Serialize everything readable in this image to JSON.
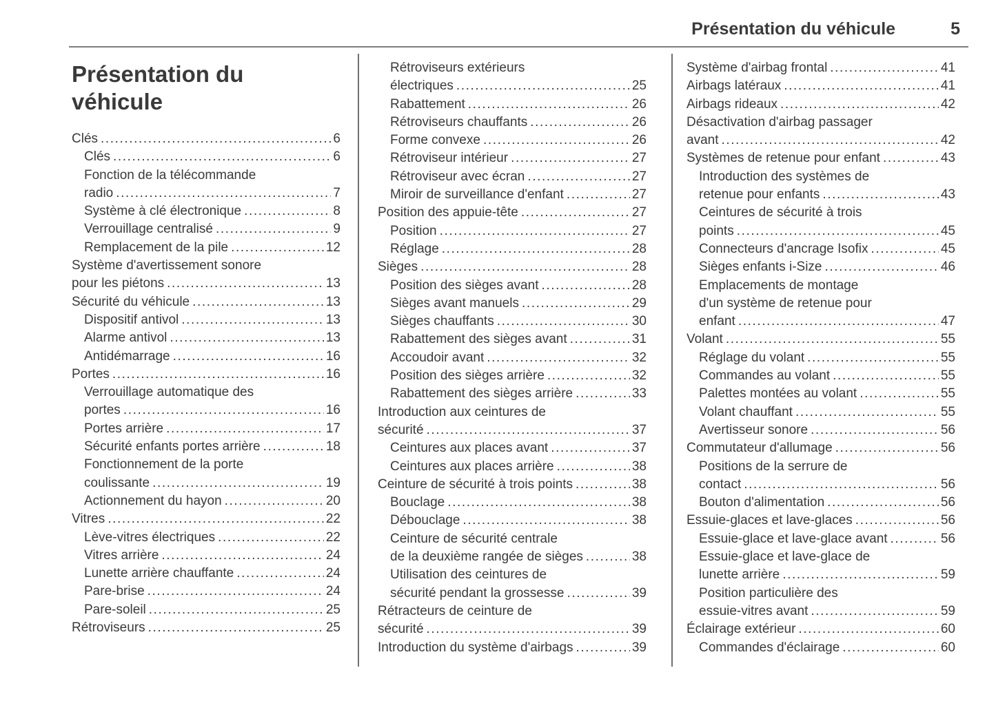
{
  "header": {
    "section_title": "Présentation du véhicule",
    "page_number": "5"
  },
  "chapter": {
    "heading": "Présentation du véhicule"
  },
  "toc": {
    "columns": [
      {
        "entries": [
          {
            "level": 0,
            "lines": [
              "Clés"
            ],
            "page": "6"
          },
          {
            "level": 1,
            "lines": [
              "Clés"
            ],
            "page": "6"
          },
          {
            "level": 1,
            "lines": [
              "Fonction de la télécommande",
              "radio"
            ],
            "page": "7"
          },
          {
            "level": 1,
            "lines": [
              "Système à clé électronique"
            ],
            "page": "8"
          },
          {
            "level": 1,
            "lines": [
              "Verrouillage centralisé"
            ],
            "page": "9"
          },
          {
            "level": 1,
            "lines": [
              "Remplacement de la pile"
            ],
            "page": "12"
          },
          {
            "level": 0,
            "lines": [
              "Système d'avertissement sonore",
              "pour les piétons"
            ],
            "page": "13"
          },
          {
            "level": 0,
            "lines": [
              "Sécurité du véhicule"
            ],
            "page": "13"
          },
          {
            "level": 1,
            "lines": [
              "Dispositif antivol"
            ],
            "page": "13"
          },
          {
            "level": 1,
            "lines": [
              "Alarme antivol"
            ],
            "page": "13"
          },
          {
            "level": 1,
            "lines": [
              "Antidémarrage"
            ],
            "page": "16"
          },
          {
            "level": 0,
            "lines": [
              "Portes"
            ],
            "page": "16"
          },
          {
            "level": 1,
            "lines": [
              "Verrouillage automatique des",
              "portes"
            ],
            "page": "16"
          },
          {
            "level": 1,
            "lines": [
              "Portes arrière"
            ],
            "page": "17"
          },
          {
            "level": 1,
            "lines": [
              "Sécurité enfants portes arrière"
            ],
            "page": "18"
          },
          {
            "level": 1,
            "lines": [
              "Fonctionnement de la porte",
              "coulissante"
            ],
            "page": "19"
          },
          {
            "level": 1,
            "lines": [
              "Actionnement du hayon"
            ],
            "page": "20"
          },
          {
            "level": 0,
            "lines": [
              "Vitres"
            ],
            "page": "22"
          },
          {
            "level": 1,
            "lines": [
              "Lève-vitres électriques"
            ],
            "page": "22"
          },
          {
            "level": 1,
            "lines": [
              "Vitres arrière"
            ],
            "page": "24"
          },
          {
            "level": 1,
            "lines": [
              "Lunette arrière chauffante"
            ],
            "page": "24"
          },
          {
            "level": 1,
            "lines": [
              "Pare-brise"
            ],
            "page": "24"
          },
          {
            "level": 1,
            "lines": [
              "Pare-soleil"
            ],
            "page": "25"
          },
          {
            "level": 0,
            "lines": [
              "Rétroviseurs"
            ],
            "page": "25"
          }
        ]
      },
      {
        "entries": [
          {
            "level": 1,
            "lines": [
              "Rétroviseurs extérieurs",
              "électriques"
            ],
            "page": "25"
          },
          {
            "level": 1,
            "lines": [
              "Rabattement"
            ],
            "page": "26"
          },
          {
            "level": 1,
            "lines": [
              "Rétroviseurs chauffants"
            ],
            "page": "26"
          },
          {
            "level": 1,
            "lines": [
              "Forme convexe"
            ],
            "page": "26"
          },
          {
            "level": 1,
            "lines": [
              "Rétroviseur intérieur"
            ],
            "page": "27"
          },
          {
            "level": 1,
            "lines": [
              "Rétroviseur avec écran"
            ],
            "page": "27"
          },
          {
            "level": 1,
            "lines": [
              "Miroir de surveillance d'enfant"
            ],
            "page": "27"
          },
          {
            "level": 0,
            "lines": [
              "Position des appuie-tête"
            ],
            "page": "27"
          },
          {
            "level": 1,
            "lines": [
              "Position"
            ],
            "page": "27"
          },
          {
            "level": 1,
            "lines": [
              "Réglage"
            ],
            "page": "28"
          },
          {
            "level": 0,
            "lines": [
              "Sièges"
            ],
            "page": "28"
          },
          {
            "level": 1,
            "lines": [
              "Position des sièges avant"
            ],
            "page": "28"
          },
          {
            "level": 1,
            "lines": [
              "Sièges avant manuels"
            ],
            "page": "29"
          },
          {
            "level": 1,
            "lines": [
              "Sièges chauffants"
            ],
            "page": "30"
          },
          {
            "level": 1,
            "lines": [
              "Rabattement des sièges avant"
            ],
            "page": "31"
          },
          {
            "level": 1,
            "lines": [
              "Accoudoir avant"
            ],
            "page": "32"
          },
          {
            "level": 1,
            "lines": [
              "Position des sièges arrière"
            ],
            "page": "32"
          },
          {
            "level": 1,
            "lines": [
              "Rabattement des sièges arrière"
            ],
            "page": "33"
          },
          {
            "level": 0,
            "lines": [
              "Introduction aux ceintures de",
              "sécurité"
            ],
            "page": "37"
          },
          {
            "level": 1,
            "lines": [
              "Ceintures aux places avant"
            ],
            "page": "37"
          },
          {
            "level": 1,
            "lines": [
              "Ceintures aux places arrière"
            ],
            "page": "38"
          },
          {
            "level": 0,
            "lines": [
              "Ceinture de sécurité à trois points"
            ],
            "page": "38"
          },
          {
            "level": 1,
            "lines": [
              "Bouclage"
            ],
            "page": "38"
          },
          {
            "level": 1,
            "lines": [
              "Débouclage"
            ],
            "page": "38"
          },
          {
            "level": 1,
            "lines": [
              "Ceinture de sécurité centrale",
              "de la deuxième rangée de sièges"
            ],
            "page": "38"
          },
          {
            "level": 1,
            "lines": [
              "Utilisation des ceintures de",
              "sécurité pendant la grossesse"
            ],
            "page": "39"
          },
          {
            "level": 0,
            "lines": [
              "Rétracteurs de ceinture de",
              "sécurité"
            ],
            "page": "39"
          },
          {
            "level": 0,
            "lines": [
              "Introduction du système d'airbags"
            ],
            "page": "39"
          }
        ]
      },
      {
        "entries": [
          {
            "level": 0,
            "lines": [
              "Système d'airbag frontal"
            ],
            "page": "41"
          },
          {
            "level": 0,
            "lines": [
              "Airbags latéraux"
            ],
            "page": "41"
          },
          {
            "level": 0,
            "lines": [
              "Airbags rideaux"
            ],
            "page": "42"
          },
          {
            "level": 0,
            "lines": [
              "Désactivation d'airbag passager",
              "avant"
            ],
            "page": "42"
          },
          {
            "level": 0,
            "lines": [
              "Systèmes de retenue pour enfant"
            ],
            "page": "43"
          },
          {
            "level": 1,
            "lines": [
              "Introduction des systèmes de",
              "retenue pour enfants"
            ],
            "page": "43"
          },
          {
            "level": 1,
            "lines": [
              "Ceintures de sécurité à trois",
              "points"
            ],
            "page": "45"
          },
          {
            "level": 1,
            "lines": [
              "Connecteurs d'ancrage Isofix"
            ],
            "page": "45"
          },
          {
            "level": 1,
            "lines": [
              "Sièges enfants i-Size"
            ],
            "page": "46"
          },
          {
            "level": 1,
            "lines": [
              "Emplacements de montage",
              "d'un système de retenue pour",
              "enfant"
            ],
            "page": "47"
          },
          {
            "level": 0,
            "lines": [
              "Volant"
            ],
            "page": "55"
          },
          {
            "level": 1,
            "lines": [
              "Réglage du volant"
            ],
            "page": "55"
          },
          {
            "level": 1,
            "lines": [
              "Commandes au volant"
            ],
            "page": "55"
          },
          {
            "level": 1,
            "lines": [
              "Palettes montées au volant"
            ],
            "page": "55"
          },
          {
            "level": 1,
            "lines": [
              "Volant chauffant"
            ],
            "page": "55"
          },
          {
            "level": 1,
            "lines": [
              "Avertisseur sonore"
            ],
            "page": "56"
          },
          {
            "level": 0,
            "lines": [
              "Commutateur d'allumage"
            ],
            "page": "56"
          },
          {
            "level": 1,
            "lines": [
              "Positions de la serrure de",
              "contact"
            ],
            "page": "56"
          },
          {
            "level": 1,
            "lines": [
              "Bouton d'alimentation"
            ],
            "page": "56"
          },
          {
            "level": 0,
            "lines": [
              "Essuie-glaces et lave-glaces"
            ],
            "page": "56"
          },
          {
            "level": 1,
            "lines": [
              "Essuie-glace et lave-glace avant"
            ],
            "page": "56"
          },
          {
            "level": 1,
            "lines": [
              "Essuie-glace et lave-glace de",
              "lunette arrière"
            ],
            "page": "59"
          },
          {
            "level": 1,
            "lines": [
              "Position particulière des",
              "essuie-vitres avant"
            ],
            "page": "59"
          },
          {
            "level": 0,
            "lines": [
              "Éclairage extérieur"
            ],
            "page": "60"
          },
          {
            "level": 1,
            "lines": [
              "Commandes d'éclairage"
            ],
            "page": "60"
          }
        ]
      }
    ]
  }
}
